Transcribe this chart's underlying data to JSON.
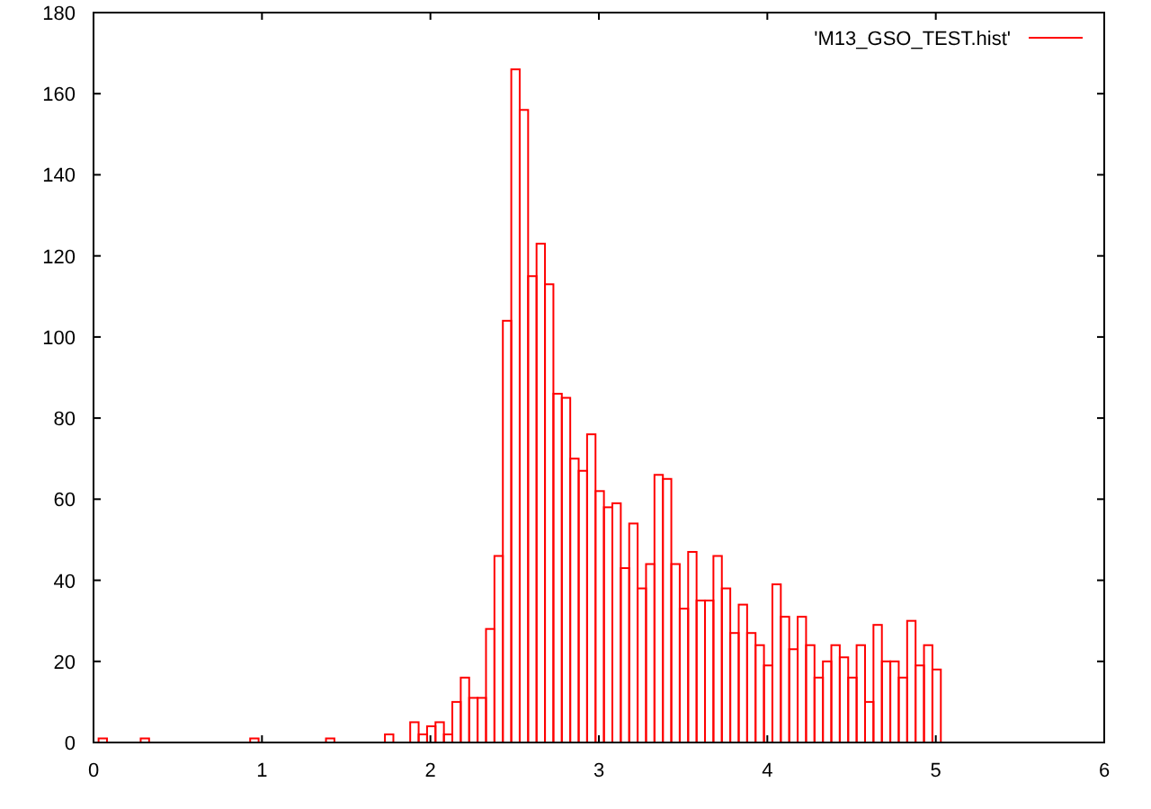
{
  "chart_data": {
    "type": "histogram",
    "series": [
      {
        "name": "'M13_GSO_TEST.hist'",
        "color": "#ff0000",
        "values": [
          1,
          0,
          0,
          0,
          0,
          1,
          0,
          0,
          0,
          0,
          0,
          0,
          0,
          0,
          0,
          0,
          0,
          0,
          1,
          0,
          0,
          0,
          0,
          0,
          0,
          0,
          0,
          1,
          0,
          0,
          0,
          0,
          0,
          0,
          2,
          0,
          0,
          5,
          2,
          4,
          5,
          2,
          10,
          16,
          11,
          11,
          28,
          46,
          104,
          166,
          156,
          115,
          123,
          113,
          86,
          85,
          70,
          67,
          76,
          62,
          58,
          59,
          43,
          54,
          38,
          44,
          66,
          65,
          44,
          33,
          47,
          35,
          35,
          46,
          38,
          27,
          34,
          27,
          24,
          19,
          39,
          31,
          23,
          31,
          24,
          16,
          20,
          24,
          21,
          16,
          24,
          10,
          29,
          20,
          20,
          16,
          30,
          19,
          24,
          18
        ]
      }
    ],
    "bins": [
      0.03,
      0.08,
      0.13,
      0.18,
      0.23,
      0.28,
      0.33,
      0.38,
      0.43,
      0.48,
      0.53,
      0.58,
      0.63,
      0.68,
      0.73,
      0.78,
      0.83,
      0.88,
      0.93,
      0.98,
      1.03,
      1.08,
      1.13,
      1.18,
      1.23,
      1.28,
      1.33,
      1.38,
      1.43,
      1.48,
      1.53,
      1.58,
      1.63,
      1.68,
      1.73,
      1.78,
      1.83,
      1.88,
      1.93,
      1.98,
      2.03,
      2.08,
      2.13,
      2.18,
      2.23,
      2.28,
      2.33,
      2.38,
      2.43,
      2.48,
      2.53,
      2.58,
      2.63,
      2.68,
      2.73,
      2.78,
      2.83,
      2.88,
      2.93,
      2.98,
      3.03,
      3.08,
      3.13,
      3.18,
      3.23,
      3.28,
      3.33,
      3.38,
      3.43,
      3.48,
      3.53,
      3.58,
      3.63,
      3.68,
      3.73,
      3.78,
      3.83,
      3.88,
      3.93,
      3.98,
      4.03,
      4.08,
      4.13,
      4.18,
      4.23,
      4.28,
      4.33,
      4.38,
      4.43,
      4.48,
      4.53,
      4.58,
      4.63,
      4.68,
      4.73,
      4.78,
      4.83,
      4.88,
      4.93,
      4.98,
      5.03
    ],
    "xlim": [
      0,
      6
    ],
    "xticks": [
      0,
      1,
      2,
      3,
      4,
      5,
      6
    ],
    "ylim": [
      0,
      180
    ],
    "yticks": [
      0,
      20,
      40,
      60,
      80,
      100,
      120,
      140,
      160,
      180
    ],
    "legend": "top right",
    "grid": false
  }
}
